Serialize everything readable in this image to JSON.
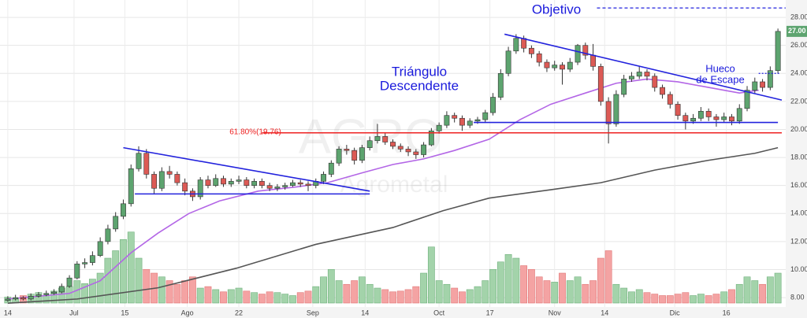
{
  "chart_data": {
    "type": "candlestick",
    "watermark": [
      "AGRO",
      "Agrometal"
    ],
    "xlim": [
      -0.5,
      100.5
    ],
    "xticks": [
      {
        "value": 0,
        "label": "14"
      },
      {
        "value": 8.6,
        "label": "Jul"
      },
      {
        "value": 15.2,
        "label": "15"
      },
      {
        "value": 23.3,
        "label": "Ago"
      },
      {
        "value": 30,
        "label": "22"
      },
      {
        "value": 39.6,
        "label": "Sep"
      },
      {
        "value": 46.4,
        "label": "14"
      },
      {
        "value": 56,
        "label": "Oct"
      },
      {
        "value": 62.6,
        "label": "17"
      },
      {
        "value": 71,
        "label": "Nov"
      },
      {
        "value": 77.5,
        "label": "14"
      },
      {
        "value": 86.6,
        "label": "Dic"
      },
      {
        "value": 93.3,
        "label": "16"
      }
    ],
    "ylim": [
      7.05,
      29.24
    ],
    "yticks": [
      {
        "value": 8,
        "label": "8.00"
      },
      {
        "value": 10,
        "label": "10.00"
      },
      {
        "value": 12,
        "label": "12.00"
      },
      {
        "value": 14,
        "label": "14.00"
      },
      {
        "value": 16,
        "label": "16.00"
      },
      {
        "value": 18,
        "label": "18.00"
      },
      {
        "value": 20,
        "label": "20.00"
      },
      {
        "value": 22,
        "label": "22.00"
      },
      {
        "value": 24,
        "label": "24.00"
      },
      {
        "value": 26,
        "label": "26.00"
      },
      {
        "value": 28,
        "label": "28.00"
      }
    ],
    "grid": true,
    "up_color": "#5da46f",
    "down_color": "#dc5a55",
    "volume_up_color": "#a3d3aa",
    "volume_down_color": "#f4a3a3",
    "volume_lim": [
      0,
      100
    ],
    "candles": [
      [
        7.8,
        8.1,
        7.7,
        7.9
      ],
      [
        7.9,
        8.2,
        7.8,
        8.0
      ],
      [
        8.0,
        8.1,
        7.8,
        7.9
      ],
      [
        7.9,
        8.3,
        7.8,
        8.1
      ],
      [
        8.1,
        8.4,
        8.0,
        8.2
      ],
      [
        8.2,
        8.5,
        8.1,
        8.3
      ],
      [
        8.3,
        8.6,
        8.2,
        8.4
      ],
      [
        8.4,
        9.0,
        8.3,
        8.8
      ],
      [
        8.8,
        9.6,
        8.7,
        9.4
      ],
      [
        9.4,
        10.6,
        9.3,
        10.4
      ],
      [
        10.4,
        10.8,
        10.1,
        10.5
      ],
      [
        10.5,
        11.3,
        10.3,
        11.0
      ],
      [
        11.0,
        12.3,
        10.9,
        12.0
      ],
      [
        12.0,
        13.2,
        11.8,
        12.9
      ],
      [
        12.9,
        14.1,
        12.7,
        13.8
      ],
      [
        13.8,
        15.0,
        13.6,
        14.7
      ],
      [
        14.7,
        17.5,
        14.5,
        17.2
      ],
      [
        17.2,
        18.8,
        17.0,
        18.3
      ],
      [
        18.3,
        18.6,
        16.5,
        16.8
      ],
      [
        16.8,
        17.0,
        15.4,
        15.8
      ],
      [
        15.8,
        17.3,
        15.6,
        17.0
      ],
      [
        17.0,
        17.4,
        16.5,
        16.8
      ],
      [
        16.8,
        17.0,
        16.0,
        16.2
      ],
      [
        16.2,
        16.5,
        15.3,
        15.6
      ],
      [
        15.6,
        15.8,
        14.9,
        15.2
      ],
      [
        15.2,
        16.6,
        15.0,
        16.4
      ],
      [
        16.4,
        16.7,
        15.8,
        16.0
      ],
      [
        16.0,
        16.8,
        15.9,
        16.5
      ],
      [
        16.5,
        16.7,
        15.9,
        16.1
      ],
      [
        16.1,
        16.5,
        15.9,
        16.3
      ],
      [
        16.3,
        16.7,
        16.1,
        16.4
      ],
      [
        16.4,
        16.6,
        15.8,
        16.0
      ],
      [
        16.0,
        16.5,
        15.8,
        16.3
      ],
      [
        16.3,
        16.5,
        15.8,
        16.0
      ],
      [
        16.0,
        16.2,
        15.6,
        15.8
      ],
      [
        15.8,
        16.1,
        15.6,
        15.9
      ],
      [
        15.9,
        16.2,
        15.7,
        16.0
      ],
      [
        16.0,
        16.4,
        15.9,
        16.2
      ],
      [
        16.2,
        16.4,
        15.9,
        16.1
      ],
      [
        16.1,
        16.3,
        15.6,
        16.0
      ],
      [
        16.0,
        16.5,
        15.8,
        16.3
      ],
      [
        16.3,
        17.0,
        16.1,
        16.8
      ],
      [
        16.8,
        17.8,
        16.6,
        17.6
      ],
      [
        17.6,
        18.8,
        17.4,
        18.6
      ],
      [
        18.6,
        18.9,
        18.2,
        18.5
      ],
      [
        18.5,
        18.7,
        17.5,
        17.8
      ],
      [
        17.8,
        18.9,
        17.6,
        18.7
      ],
      [
        18.7,
        19.5,
        18.5,
        19.2
      ],
      [
        19.2,
        20.4,
        19.0,
        19.5
      ],
      [
        19.5,
        19.8,
        18.9,
        19.1
      ],
      [
        19.1,
        19.3,
        18.6,
        18.8
      ],
      [
        18.8,
        19.0,
        18.4,
        18.6
      ],
      [
        18.6,
        18.8,
        18.1,
        18.4
      ],
      [
        18.4,
        18.6,
        17.9,
        18.2
      ],
      [
        18.2,
        19.1,
        18.0,
        18.9
      ],
      [
        18.9,
        20.1,
        18.8,
        19.9
      ],
      [
        19.9,
        20.5,
        19.7,
        20.3
      ],
      [
        20.3,
        21.3,
        20.1,
        21.0
      ],
      [
        21.0,
        21.2,
        20.5,
        20.8
      ],
      [
        20.8,
        21.0,
        19.9,
        20.3
      ],
      [
        20.3,
        20.8,
        20.1,
        20.6
      ],
      [
        20.6,
        20.9,
        20.4,
        20.7
      ],
      [
        20.7,
        21.4,
        20.5,
        21.2
      ],
      [
        21.2,
        22.6,
        21.0,
        22.3
      ],
      [
        22.3,
        24.3,
        22.1,
        24.0
      ],
      [
        24.0,
        25.9,
        23.8,
        25.6
      ],
      [
        25.6,
        26.8,
        25.4,
        26.5
      ],
      [
        26.5,
        26.7,
        25.5,
        25.8
      ],
      [
        25.8,
        26.0,
        25.1,
        25.4
      ],
      [
        25.4,
        25.6,
        24.5,
        24.8
      ],
      [
        24.8,
        25.0,
        24.1,
        24.4
      ],
      [
        24.4,
        24.9,
        24.2,
        24.6
      ],
      [
        24.6,
        24.8,
        23.2,
        24.3
      ],
      [
        24.3,
        25.1,
        24.1,
        24.8
      ],
      [
        24.8,
        26.1,
        24.6,
        26.0
      ],
      [
        26.0,
        26.2,
        25.0,
        25.3
      ],
      [
        25.3,
        26.1,
        24.2,
        24.5
      ],
      [
        24.5,
        24.7,
        21.7,
        22.0
      ],
      [
        22.0,
        22.3,
        19.0,
        20.4
      ],
      [
        20.4,
        22.8,
        20.2,
        22.5
      ],
      [
        22.5,
        23.9,
        22.3,
        23.6
      ],
      [
        23.6,
        24.1,
        23.4,
        23.8
      ],
      [
        23.8,
        24.5,
        23.6,
        24.1
      ],
      [
        24.1,
        24.3,
        23.5,
        23.8
      ],
      [
        23.8,
        24.0,
        22.7,
        23.0
      ],
      [
        23.0,
        23.2,
        22.2,
        22.5
      ],
      [
        22.5,
        22.7,
        21.5,
        21.8
      ],
      [
        21.8,
        22.0,
        20.7,
        21.0
      ],
      [
        21.0,
        21.2,
        20.0,
        20.6
      ],
      [
        20.6,
        21.1,
        20.4,
        20.8
      ],
      [
        20.8,
        21.6,
        20.6,
        21.3
      ],
      [
        21.3,
        21.5,
        20.6,
        20.9
      ],
      [
        20.9,
        21.1,
        20.2,
        20.7
      ],
      [
        20.7,
        21.2,
        20.5,
        20.9
      ],
      [
        20.9,
        21.1,
        20.3,
        20.6
      ],
      [
        20.6,
        21.8,
        20.4,
        21.5
      ],
      [
        21.5,
        23.1,
        21.3,
        22.8
      ],
      [
        22.8,
        23.7,
        22.6,
        23.4
      ],
      [
        23.4,
        23.6,
        22.7,
        23.0
      ],
      [
        23.0,
        24.5,
        22.8,
        24.2
      ],
      [
        24.2,
        27.2,
        24.0,
        27.0
      ]
    ],
    "volume": [
      8,
      6,
      10,
      12,
      14,
      10,
      16,
      20,
      22,
      30,
      26,
      32,
      40,
      60,
      70,
      85,
      95,
      60,
      45,
      40,
      35,
      30,
      25,
      30,
      35,
      20,
      22,
      18,
      15,
      18,
      20,
      16,
      14,
      12,
      15,
      14,
      12,
      10,
      14,
      16,
      22,
      35,
      45,
      30,
      25,
      30,
      35,
      25,
      20,
      18,
      15,
      16,
      18,
      22,
      40,
      75,
      30,
      25,
      20,
      15,
      18,
      22,
      30,
      45,
      55,
      65,
      60,
      50,
      45,
      35,
      30,
      28,
      40,
      30,
      35,
      25,
      30,
      60,
      70,
      25,
      20,
      15,
      18,
      14,
      12,
      10,
      10,
      12,
      14,
      10,
      12,
      10,
      12,
      15,
      18,
      25,
      35,
      30,
      25,
      35,
      40
    ],
    "moving_averages": [
      {
        "color": "#b366e6",
        "x": [
          0,
          8,
          12,
          16,
          19.5,
          23.5,
          27.5,
          32.5,
          37.5,
          41.5,
          46,
          50,
          54,
          58,
          62.5,
          66.5,
          70.5,
          75,
          79,
          83,
          87,
          91,
          95,
          97.5
        ],
        "values": [
          7.9,
          8.3,
          9.2,
          11.2,
          12.6,
          14.0,
          14.9,
          15.6,
          15.9,
          16.2,
          16.9,
          17.5,
          17.9,
          18.5,
          19.3,
          20.7,
          21.8,
          22.6,
          23.3,
          23.6,
          23.4,
          23.0,
          22.6,
          22.8
        ]
      },
      {
        "color": "#555555",
        "x": [
          0,
          9,
          19.5,
          29.7,
          40,
          50,
          56.5,
          62.5,
          70.5,
          77,
          84,
          91,
          97,
          100
        ],
        "values": [
          7.6,
          7.9,
          8.7,
          10.1,
          11.8,
          13.0,
          14.2,
          15.1,
          15.7,
          16.2,
          17.1,
          17.8,
          18.3,
          18.7
        ]
      }
    ],
    "trendlines": [
      {
        "color": "#2222dd",
        "x": [
          15,
          47
        ],
        "values": [
          18.7,
          15.6
        ]
      },
      {
        "color": "#2222dd",
        "x": [
          16.5,
          47
        ],
        "values": [
          15.4,
          15.4
        ]
      },
      {
        "color": "#2222dd",
        "x": [
          64.5,
          100.5
        ],
        "values": [
          26.8,
          22.1
        ]
      },
      {
        "color": "#2222dd",
        "x": [
          60.5,
          100
        ],
        "values": [
          20.5,
          20.5
        ]
      },
      {
        "color": "#ee2222",
        "x": [
          33,
          100.5
        ],
        "values": [
          19.76,
          19.76
        ]
      }
    ],
    "target_line": {
      "color": "#2222dd",
      "x": [
        76.5,
        101
      ],
      "values": [
        28.67,
        28.67
      ]
    },
    "gap_line": {
      "color": "#2222dd",
      "x": [
        97.5,
        100.3
      ],
      "values": [
        24.0,
        24.0
      ]
    },
    "annotations": [
      "Triángulo",
      "Descendente",
      "Objetivo",
      "Hueco",
      "de Escape",
      "61.80%(19.76)"
    ],
    "last_price": {
      "value": 27,
      "label": "27.00"
    }
  }
}
